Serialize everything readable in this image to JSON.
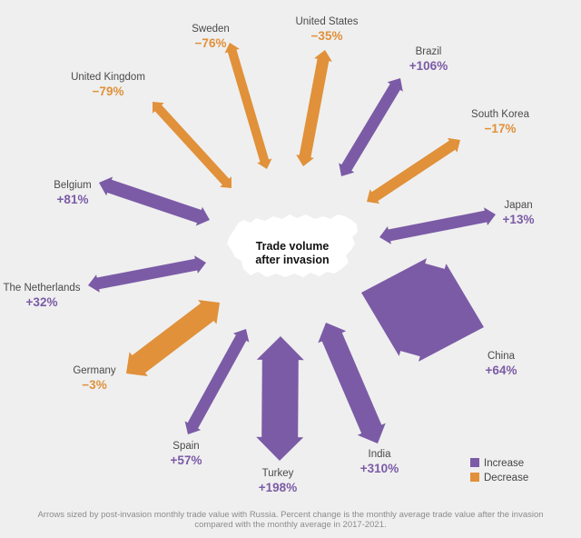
{
  "chart_data": {
    "type": "radial-arrow",
    "center_label": [
      "Trade volume",
      "after invasion"
    ],
    "series": [
      {
        "name": "Increase",
        "color": "#7b5ba6"
      },
      {
        "name": "Decrease",
        "color": "#e0913a"
      }
    ],
    "countries": [
      {
        "name": "United States",
        "change": "−35%",
        "value": -35,
        "series": "Decrease"
      },
      {
        "name": "Brazil",
        "change": "+106%",
        "value": 106,
        "series": "Increase"
      },
      {
        "name": "South Korea",
        "change": "−17%",
        "value": -17,
        "series": "Decrease"
      },
      {
        "name": "Japan",
        "change": "+13%",
        "value": 13,
        "series": "Increase"
      },
      {
        "name": "China",
        "change": "+64%",
        "value": 64,
        "series": "Increase"
      },
      {
        "name": "India",
        "change": "+310%",
        "value": 310,
        "series": "Increase"
      },
      {
        "name": "Turkey",
        "change": "+198%",
        "value": 198,
        "series": "Increase"
      },
      {
        "name": "Spain",
        "change": "+57%",
        "value": 57,
        "series": "Increase"
      },
      {
        "name": "Germany",
        "change": "−3%",
        "value": -3,
        "series": "Decrease"
      },
      {
        "name": "The Netherlands",
        "change": "+32%",
        "value": 32,
        "series": "Increase"
      },
      {
        "name": "Belgium",
        "change": "+81%",
        "value": 81,
        "series": "Increase"
      },
      {
        "name": "United Kingdom",
        "change": "−79%",
        "value": -79,
        "series": "Decrease"
      },
      {
        "name": "Sweden",
        "change": "−76%",
        "value": -76,
        "series": "Decrease"
      }
    ],
    "legend": {
      "position": "bottom-right"
    },
    "footnote": "Arrows sized by post-invasion monthly trade value with Russia. Percent change is the monthly average trade value after the invasion compared with the monthly average in 2017-2021."
  }
}
